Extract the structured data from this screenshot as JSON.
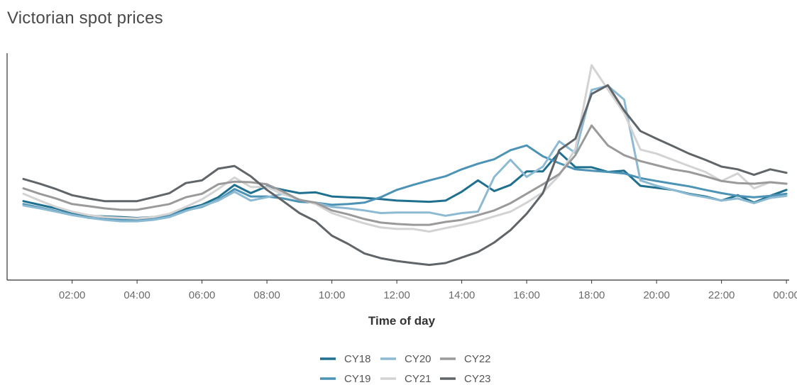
{
  "page": {
    "title": "Victorian spot prices"
  },
  "chart_data": {
    "type": "line",
    "title": "Victorian spot prices",
    "xlabel": "Time of day",
    "ylabel": "",
    "x_ticks": [
      "02:00",
      "04:00",
      "06:00",
      "08:00",
      "10:00",
      "12:00",
      "14:00",
      "16:00",
      "18:00",
      "20:00",
      "22:00",
      "00:00"
    ],
    "x_range_hours": [
      0.5,
      24
    ],
    "y_range": [
      0,
      100
    ],
    "grid": false,
    "legend_position": "bottom-center",
    "x": [
      0.5,
      1.0,
      1.5,
      2.0,
      2.5,
      3.0,
      3.5,
      4.0,
      4.5,
      5.0,
      5.5,
      6.0,
      6.5,
      7.0,
      7.5,
      8.0,
      8.5,
      9.0,
      9.5,
      10.0,
      10.5,
      11.0,
      11.5,
      12.0,
      12.5,
      13.0,
      13.5,
      14.0,
      14.5,
      15.0,
      15.5,
      16.0,
      16.5,
      17.0,
      17.5,
      18.0,
      18.5,
      19.0,
      19.5,
      20.0,
      20.5,
      21.0,
      21.5,
      22.0,
      22.5,
      23.0,
      23.5,
      24.0
    ],
    "series": [
      {
        "name": "CY18",
        "color": "#1f6f8f",
        "values": [
          33.2,
          31.4,
          29.7,
          27.7,
          26.1,
          25.8,
          25.5,
          25.0,
          25.5,
          26.4,
          29.4,
          31.4,
          35.1,
          41.1,
          37.1,
          40.4,
          38.7,
          37.1,
          37.5,
          35.5,
          35.1,
          34.8,
          34.2,
          33.5,
          33.2,
          32.9,
          33.5,
          37.8,
          43.3,
          38.1,
          41.1,
          47.7,
          47.7,
          57.0,
          49.7,
          49.7,
          47.4,
          48.0,
          40.7,
          39.7,
          38.7,
          36.8,
          35.5,
          33.5,
          36.1,
          32.5,
          35.8,
          38.7
        ]
      },
      {
        "name": "CY19",
        "color": "#4d93b5",
        "values": [
          31.8,
          30.1,
          28.4,
          26.8,
          25.1,
          24.5,
          24.1,
          24.1,
          25.1,
          26.1,
          28.7,
          30.4,
          33.8,
          39.1,
          35.5,
          35.5,
          34.5,
          32.9,
          32.5,
          31.4,
          31.8,
          32.5,
          35.1,
          38.7,
          41.1,
          43.3,
          45.3,
          48.7,
          51.4,
          53.6,
          58.0,
          60.3,
          55.0,
          51.7,
          48.7,
          48.0,
          47.4,
          46.7,
          44.4,
          43.0,
          41.7,
          40.4,
          38.7,
          37.1,
          35.8,
          35.1,
          35.8,
          36.8
        ]
      },
      {
        "name": "CY20",
        "color": "#8dbad3",
        "values": [
          31.1,
          29.7,
          28.1,
          26.4,
          25.1,
          24.1,
          23.4,
          23.4,
          24.1,
          25.5,
          28.4,
          30.8,
          33.5,
          37.8,
          33.5,
          35.1,
          36.8,
          33.8,
          32.5,
          30.4,
          29.7,
          28.7,
          27.4,
          27.7,
          27.7,
          27.7,
          26.1,
          27.4,
          28.1,
          45.0,
          53.3,
          45.0,
          50.0,
          62.3,
          56.6,
          87.3,
          89.3,
          82.6,
          43.3,
          40.7,
          38.7,
          36.5,
          35.1,
          33.5,
          34.5,
          32.2,
          34.8,
          35.8
        ]
      },
      {
        "name": "CY21",
        "color": "#d3d3d3",
        "values": [
          36.8,
          33.5,
          30.4,
          28.1,
          26.4,
          25.5,
          25.1,
          24.8,
          25.5,
          27.1,
          30.4,
          34.1,
          39.1,
          44.7,
          40.1,
          40.1,
          36.5,
          34.1,
          31.8,
          27.4,
          24.8,
          22.4,
          20.4,
          19.7,
          19.7,
          18.4,
          20.1,
          21.7,
          23.4,
          25.8,
          28.1,
          32.5,
          37.5,
          45.7,
          58.7,
          99.3,
          87.6,
          76.0,
          58.3,
          56.3,
          53.3,
          50.3,
          47.4,
          43.0,
          46.7,
          39.4,
          42.4,
          41.7
        ]
      },
      {
        "name": "CY22",
        "color": "#9a9a9a",
        "values": [
          39.4,
          36.8,
          34.5,
          31.8,
          30.8,
          29.7,
          29.0,
          29.0,
          30.4,
          31.8,
          35.1,
          36.8,
          41.4,
          42.7,
          42.4,
          41.4,
          37.8,
          33.8,
          32.5,
          28.7,
          26.8,
          24.5,
          22.8,
          22.1,
          21.7,
          21.7,
          23.1,
          24.1,
          26.4,
          28.7,
          32.2,
          36.8,
          41.4,
          46.3,
          55.6,
          70.0,
          60.3,
          55.6,
          52.7,
          50.7,
          48.7,
          47.4,
          45.3,
          43.0,
          42.0,
          41.7,
          42.4,
          41.7
        ]
      },
      {
        "name": "CY23",
        "color": "#606569",
        "values": [
          44.0,
          41.7,
          39.1,
          36.1,
          34.5,
          33.2,
          33.2,
          33.2,
          35.1,
          37.1,
          42.0,
          43.3,
          49.0,
          50.3,
          45.3,
          38.7,
          33.2,
          27.4,
          23.4,
          16.4,
          12.4,
          7.8,
          5.5,
          4.1,
          3.1,
          2.2,
          3.1,
          5.8,
          8.5,
          13.1,
          19.1,
          27.1,
          37.1,
          58.0,
          63.6,
          85.3,
          89.6,
          77.3,
          67.3,
          63.6,
          60.0,
          56.3,
          53.3,
          50.0,
          48.7,
          46.0,
          48.7,
          47.0
        ]
      }
    ]
  }
}
